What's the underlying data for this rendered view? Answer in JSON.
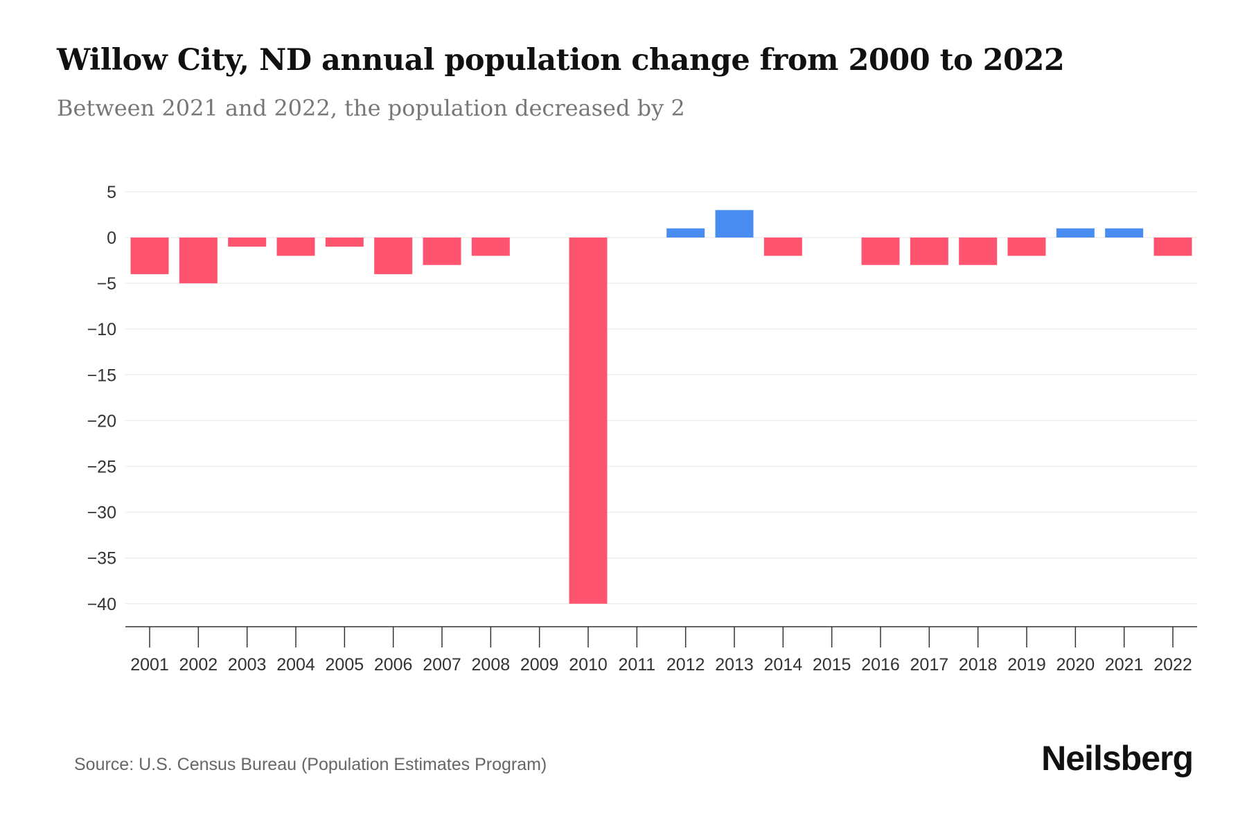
{
  "title": "Willow City, ND annual population change from 2000 to 2022",
  "subtitle": "Between 2021 and 2022, the population decreased by 2",
  "source": "Source: U.S. Census Bureau (Population Estimates Program)",
  "logo": "Neilsberg",
  "colors": {
    "negative": "#FF5470",
    "positive": "#4A8DF0",
    "grid": "#EEEEEE",
    "axis": "#333333"
  },
  "chart_data": {
    "type": "bar",
    "title": "Willow City, ND annual population change from 2000 to 2022",
    "xlabel": "",
    "ylabel": "",
    "ylim": [
      -40,
      5
    ],
    "yticks": [
      5,
      0,
      -5,
      -10,
      -15,
      -20,
      -25,
      -30,
      -35,
      -40
    ],
    "grid": true,
    "categories": [
      "2001",
      "2002",
      "2003",
      "2004",
      "2005",
      "2006",
      "2007",
      "2008",
      "2009",
      "2010",
      "2011",
      "2012",
      "2013",
      "2014",
      "2015",
      "2016",
      "2017",
      "2018",
      "2019",
      "2020",
      "2021",
      "2022"
    ],
    "values": [
      -4,
      -5,
      -1,
      -2,
      -1,
      -4,
      -3,
      -2,
      0,
      -40,
      0,
      1,
      3,
      -2,
      0,
      -3,
      -3,
      -3,
      -2,
      1,
      1,
      -2
    ]
  }
}
